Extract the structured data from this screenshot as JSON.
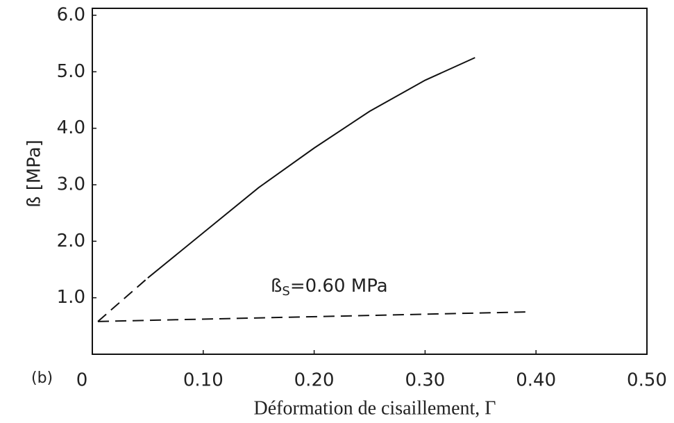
{
  "chart_data": {
    "type": "line",
    "panel_label": "(b)",
    "xlabel": "Déformation de cisaillement, Γ",
    "ylabel": "ß [MPa]",
    "annotation": {
      "symbol": "ß",
      "subscript": "S",
      "text": "=0.60 MPa"
    },
    "series": [
      {
        "color": "#111111",
        "style": "dashed",
        "x": [
          0.005,
          0.05
        ],
        "values": [
          0.58,
          1.35
        ]
      },
      {
        "color": "#111111",
        "style": "solid",
        "x": [
          0.05,
          0.1,
          0.15,
          0.2,
          0.25,
          0.3,
          0.345
        ],
        "values": [
          1.35,
          2.15,
          2.95,
          3.65,
          4.3,
          4.85,
          5.25
        ]
      },
      {
        "color": "#111111",
        "style": "dashed",
        "x": [
          0.005,
          0.395
        ],
        "values": [
          0.58,
          0.75
        ]
      }
    ],
    "xlim": [
      0,
      0.5
    ],
    "xticks": [
      0,
      {
        "value": 0.1,
        "label": "0.10"
      },
      {
        "value": 0.2,
        "label": "0.20"
      },
      {
        "value": 0.3,
        "label": "0.30"
      },
      {
        "value": 0.4,
        "label": "0.40"
      },
      {
        "value": 0.5,
        "label": "0.50"
      }
    ],
    "ylim": [
      0,
      6
    ],
    "yticks": [
      {
        "value": 1,
        "label": "1.0"
      },
      {
        "value": 2,
        "label": "2.0"
      },
      {
        "value": 3,
        "label": "3.0"
      },
      {
        "value": 4,
        "label": "4.0"
      },
      {
        "value": 5,
        "label": "5.0"
      },
      {
        "value": 6,
        "label": "6.0"
      }
    ],
    "grid": false
  }
}
